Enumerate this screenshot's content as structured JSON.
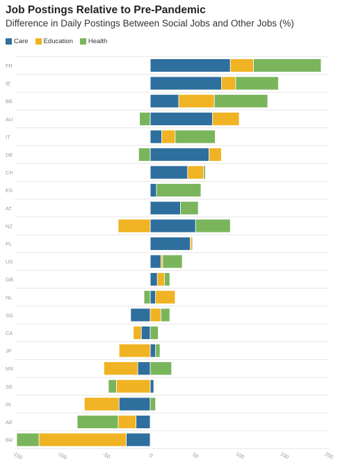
{
  "chart_data": {
    "type": "bar",
    "orientation": "horizontal",
    "stacked": true,
    "title": "Job Postings Relative to Pre-Pandemic",
    "subtitle": "Difference in Daily Postings Between Social Jobs and Other Jobs (%)",
    "legend_placement": "top-left",
    "grid": true,
    "xlim": [
      -150,
      200
    ],
    "xticks": [
      -150,
      -100,
      -50,
      0,
      50,
      100,
      150,
      200
    ],
    "categories": [
      "FR",
      "IE",
      "BE",
      "AU",
      "IT",
      "DE",
      "CH",
      "ES",
      "AT",
      "NZ",
      "PL",
      "US",
      "GB",
      "NL",
      "SG",
      "CA",
      "JP",
      "MX",
      "SE",
      "IN",
      "AE",
      "BR"
    ],
    "series": [
      {
        "name": "Care",
        "color": "#2e6f9e",
        "values": [
          90,
          80,
          32,
          70,
          13,
          66,
          42,
          7,
          34,
          51,
          45,
          12,
          8,
          6,
          -22,
          -10,
          6,
          -14,
          4,
          -35,
          -16,
          -27
        ]
      },
      {
        "name": "Education",
        "color": "#f0b323",
        "values": [
          26,
          16,
          40,
          30,
          15,
          14,
          18,
          0,
          0,
          -36,
          2,
          2,
          8,
          22,
          12,
          -9,
          -35,
          -38,
          -38,
          -39,
          -20,
          -98
        ]
      },
      {
        "name": "Health",
        "color": "#7ab55c",
        "values": [
          76,
          48,
          60,
          -12,
          45,
          -13,
          2,
          50,
          20,
          39,
          1,
          22,
          6,
          -7,
          10,
          9,
          5,
          24,
          -9,
          6,
          -46,
          -25
        ]
      }
    ]
  }
}
